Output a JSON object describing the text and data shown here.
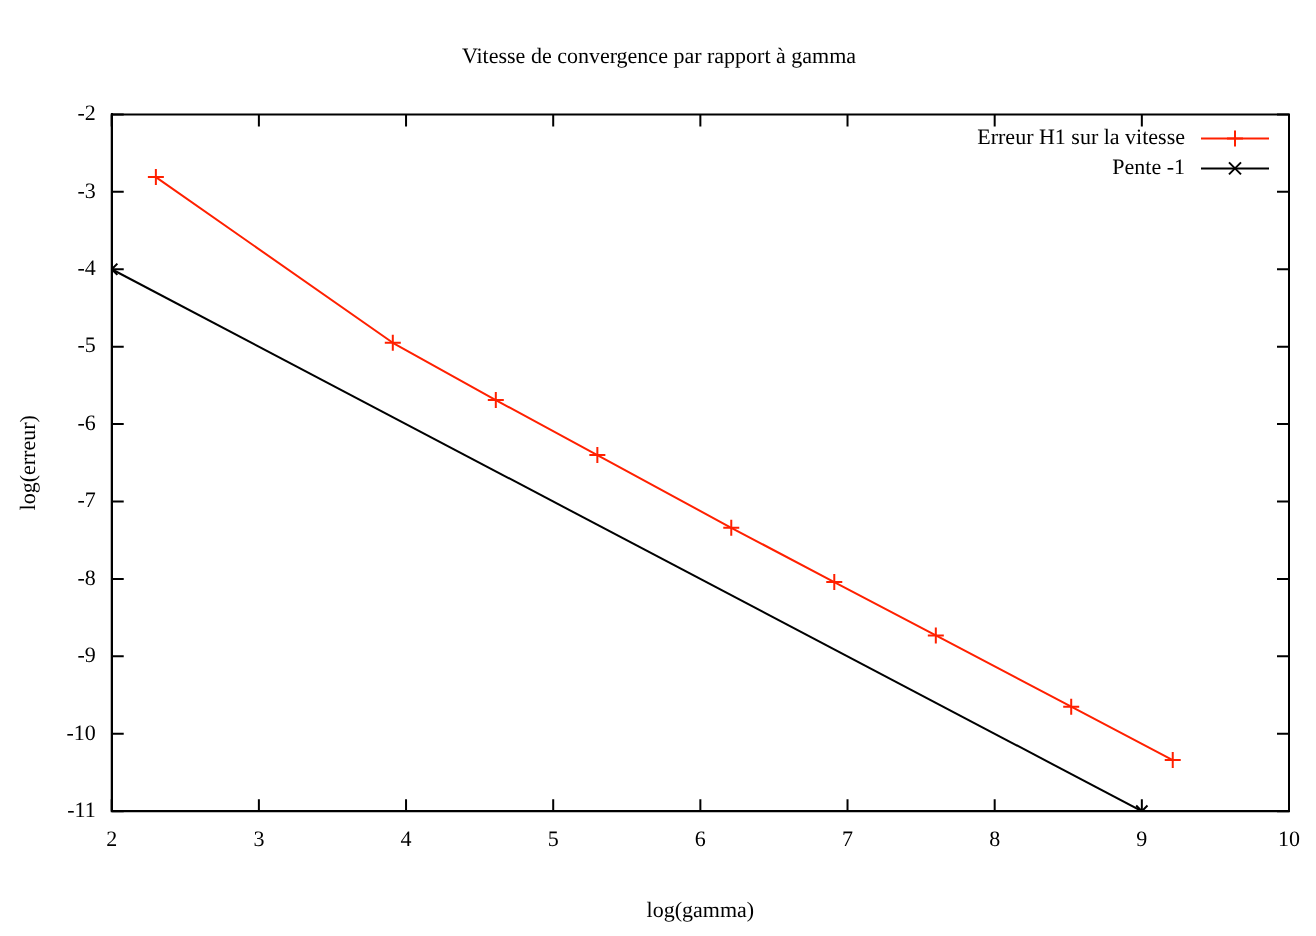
{
  "chart_data": {
    "type": "line",
    "title": "Vitesse de convergence par rapport à gamma",
    "xlabel": "log(gamma)",
    "ylabel": "log(erreur)",
    "xlim": [
      2,
      10
    ],
    "xticks": [
      2,
      3,
      4,
      5,
      6,
      7,
      8,
      9,
      10
    ],
    "ylim": [
      -11,
      -2
    ],
    "yticks": [
      -11,
      -10,
      -9,
      -8,
      -7,
      -6,
      -5,
      -4,
      -3,
      -2
    ],
    "grid": false,
    "legend": "top right",
    "series": [
      {
        "name": "Erreur H1 sur la vitesse",
        "color": "#ff2000",
        "marker": "cross",
        "x": [
          2.3,
          3.91,
          4.61,
          5.3,
          6.21,
          6.91,
          7.6,
          8.52,
          9.21
        ],
        "values": [
          -2.81,
          -4.95,
          -5.69,
          -6.4,
          -7.34,
          -8.04,
          -8.73,
          -9.65,
          -10.34
        ]
      },
      {
        "name": "Pente -1",
        "color": "#000000",
        "marker": "x",
        "x": [
          2,
          9
        ],
        "values": [
          -4,
          -11
        ]
      }
    ]
  }
}
